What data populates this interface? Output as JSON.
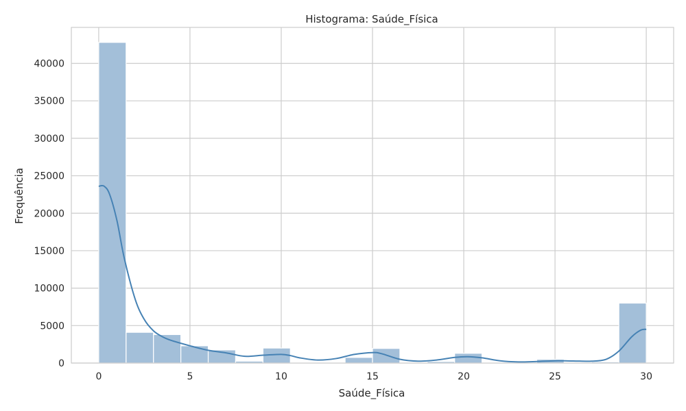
{
  "chart_data": {
    "type": "bar",
    "title": "Histograma: Saúde_Física",
    "xlabel": "Saúde_Física",
    "ylabel": "Frequência",
    "xlim": [
      -1.5,
      31.5
    ],
    "ylim": [
      0,
      44800
    ],
    "xticks": [
      0,
      5,
      10,
      15,
      20,
      25,
      30
    ],
    "yticks": [
      0,
      5000,
      10000,
      15000,
      20000,
      25000,
      30000,
      35000,
      40000
    ],
    "grid": true,
    "bins": [
      {
        "x0": 0.0,
        "x1": 1.5,
        "value": 42800
      },
      {
        "x0": 1.5,
        "x1": 3.0,
        "value": 4100
      },
      {
        "x0": 3.0,
        "x1": 4.5,
        "value": 3800
      },
      {
        "x0": 4.5,
        "x1": 6.0,
        "value": 2300
      },
      {
        "x0": 6.0,
        "x1": 7.5,
        "value": 1750
      },
      {
        "x0": 7.5,
        "x1": 9.0,
        "value": 250
      },
      {
        "x0": 9.0,
        "x1": 10.5,
        "value": 2000
      },
      {
        "x0": 10.5,
        "x1": 12.0,
        "value": 50
      },
      {
        "x0": 12.0,
        "x1": 13.5,
        "value": 100
      },
      {
        "x0": 13.5,
        "x1": 15.0,
        "value": 750
      },
      {
        "x0": 15.0,
        "x1": 16.5,
        "value": 1950
      },
      {
        "x0": 16.5,
        "x1": 18.0,
        "value": 100
      },
      {
        "x0": 18.0,
        "x1": 19.5,
        "value": 200
      },
      {
        "x0": 19.5,
        "x1": 21.0,
        "value": 1300
      },
      {
        "x0": 21.0,
        "x1": 22.5,
        "value": 50
      },
      {
        "x0": 22.5,
        "x1": 24.0,
        "value": 100
      },
      {
        "x0": 24.0,
        "x1": 25.5,
        "value": 500
      },
      {
        "x0": 25.5,
        "x1": 27.0,
        "value": 100
      },
      {
        "x0": 27.0,
        "x1": 28.5,
        "value": 150
      },
      {
        "x0": 28.5,
        "x1": 30.0,
        "value": 8000
      }
    ],
    "kde": {
      "x": [
        0,
        0.3,
        0.6,
        1.0,
        1.4,
        2.0,
        2.5,
        3.0,
        3.5,
        4.0,
        5.0,
        6.0,
        7.0,
        8.0,
        9.0,
        10.0,
        10.5,
        11.0,
        12.0,
        13.0,
        14.0,
        15.0,
        15.5,
        16.5,
        17.5,
        18.5,
        19.5,
        20.2,
        21.0,
        22.0,
        23.0,
        24.0,
        25.0,
        26.0,
        27.0,
        27.8,
        28.5,
        29.2,
        29.7,
        30.0
      ],
      "y": [
        23600,
        23600,
        22500,
        19000,
        14000,
        8500,
        5800,
        4300,
        3500,
        3000,
        2300,
        1700,
        1350,
        900,
        1050,
        1150,
        1000,
        700,
        400,
        600,
        1150,
        1400,
        1250,
        500,
        250,
        400,
        750,
        850,
        700,
        300,
        150,
        200,
        300,
        280,
        250,
        500,
        1600,
        3500,
        4400,
        4500
      ]
    },
    "colors": {
      "bar_fill": "#a3bfd9",
      "bar_edge": "#ffffff",
      "kde_line": "#4682b4",
      "grid": "#cccccc",
      "spine": "#cccccc"
    }
  }
}
